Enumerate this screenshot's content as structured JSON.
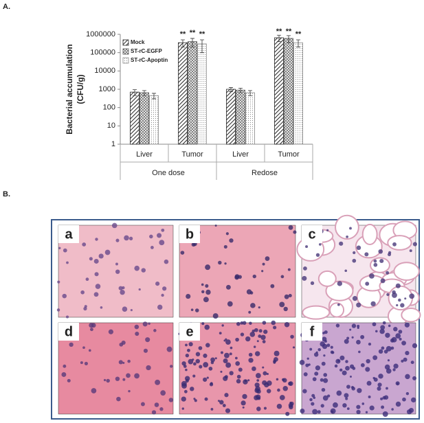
{
  "panel_a_label": "A.",
  "panel_b_label": "B.",
  "chart_data": {
    "type": "bar",
    "ylabel": [
      "Bacterial accumulation",
      "(CFU/g)"
    ],
    "categories": [
      "Liver",
      "Tumor",
      "Liver",
      "Tumor"
    ],
    "groups": [
      {
        "name": "One dose",
        "span": [
          0,
          1
        ]
      },
      {
        "name": "Redose",
        "span": [
          2,
          3
        ]
      }
    ],
    "series": [
      {
        "name": "Mock",
        "color": "#222222",
        "values": [
          700,
          350000,
          1000,
          650000
        ],
        "errors": [
          250,
          150000,
          250,
          250000
        ],
        "markers": [
          null,
          "**",
          null,
          "**"
        ]
      },
      {
        "name": "ST-rC-EGFP",
        "color": "#555555",
        "values": [
          650,
          400000,
          900,
          600000
        ],
        "errors": [
          200,
          200000,
          250,
          250000
        ],
        "markers": [
          null,
          "**",
          null,
          "**"
        ]
      },
      {
        "name": "ST-rC-Apoptin",
        "color": "#888888",
        "values": [
          450,
          300000,
          650,
          350000
        ],
        "errors": [
          150,
          200000,
          200,
          150000
        ],
        "markers": [
          null,
          "**",
          null,
          "**"
        ]
      }
    ],
    "log_scale": true,
    "ylim": [
      1,
      1000000
    ],
    "yticks": [
      1,
      10,
      100,
      1000,
      10000,
      100000,
      1000000
    ],
    "legend": "upper left",
    "grid": false
  },
  "panel_b": {
    "images": [
      {
        "label": "a"
      },
      {
        "label": "b"
      },
      {
        "label": "c"
      },
      {
        "label": "d"
      },
      {
        "label": "e"
      },
      {
        "label": "f"
      }
    ]
  }
}
